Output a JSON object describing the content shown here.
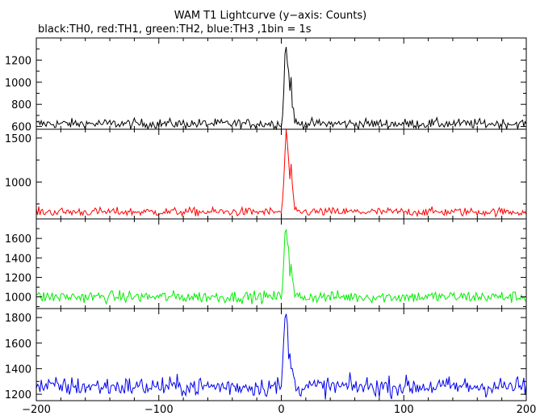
{
  "chart_data": {
    "type": "line",
    "title": "WAM T1 Lightcurve (y−axis: Counts)",
    "subtitle": "black:TH0, red:TH1, green:TH2, blue:TH3 ,1bin = 1s",
    "xlim": [
      -200,
      200
    ],
    "x_ticks": [
      -200,
      -100,
      0,
      100,
      200
    ],
    "x_tick_labels": [
      "−200",
      "−100",
      "0",
      "100",
      "200"
    ],
    "grid": false,
    "panels": [
      {
        "name": "TH0",
        "color": "#000000",
        "ylim": [
          575,
          1400
        ],
        "y_ticks": [
          600,
          800,
          1000,
          1200
        ],
        "baseline": 625,
        "noise": 22,
        "burst": [
          {
            "x": 1,
            "value": 700
          },
          {
            "x": 2,
            "value": 900
          },
          {
            "x": 3,
            "value": 1250
          },
          {
            "x": 4,
            "value": 1360
          },
          {
            "x": 5,
            "value": 1150
          },
          {
            "x": 6,
            "value": 1080
          },
          {
            "x": 7,
            "value": 930
          },
          {
            "x": 8,
            "value": 1050
          },
          {
            "x": 9,
            "value": 820
          },
          {
            "x": 10,
            "value": 720
          },
          {
            "x": 12,
            "value": 650
          }
        ]
      },
      {
        "name": "TH1",
        "color": "#ff0000",
        "ylim": [
          580,
          1600
        ],
        "y_ticks": [
          1000,
          1500
        ],
        "baseline": 660,
        "noise": 24,
        "burst": [
          {
            "x": 1,
            "value": 760
          },
          {
            "x": 2,
            "value": 1000
          },
          {
            "x": 3,
            "value": 1350
          },
          {
            "x": 4,
            "value": 1560
          },
          {
            "x": 5,
            "value": 1400
          },
          {
            "x": 6,
            "value": 1250
          },
          {
            "x": 7,
            "value": 1050
          },
          {
            "x": 8,
            "value": 1180
          },
          {
            "x": 9,
            "value": 900
          },
          {
            "x": 10,
            "value": 780
          },
          {
            "x": 12,
            "value": 700
          }
        ]
      },
      {
        "name": "TH2",
        "color": "#00ee00",
        "ylim": [
          880,
          1800
        ],
        "y_ticks": [
          1000,
          1200,
          1400,
          1600
        ],
        "baseline": 1000,
        "noise": 30,
        "burst": [
          {
            "x": 1,
            "value": 1150
          },
          {
            "x": 2,
            "value": 1400
          },
          {
            "x": 3,
            "value": 1650
          },
          {
            "x": 4,
            "value": 1750
          },
          {
            "x": 5,
            "value": 1600
          },
          {
            "x": 6,
            "value": 1450
          },
          {
            "x": 7,
            "value": 1250
          },
          {
            "x": 8,
            "value": 1350
          },
          {
            "x": 9,
            "value": 1150
          },
          {
            "x": 10,
            "value": 1080
          },
          {
            "x": 12,
            "value": 1040
          }
        ]
      },
      {
        "name": "TH3",
        "color": "#0000ee",
        "ylim": [
          1150,
          1870
        ],
        "y_ticks": [
          1200,
          1400,
          1600,
          1800
        ],
        "baseline": 1260,
        "noise": 38,
        "burst": [
          {
            "x": 1,
            "value": 1400
          },
          {
            "x": 2,
            "value": 1600
          },
          {
            "x": 3,
            "value": 1780
          },
          {
            "x": 4,
            "value": 1840
          },
          {
            "x": 5,
            "value": 1700
          },
          {
            "x": 6,
            "value": 1550
          },
          {
            "x": 7,
            "value": 1450
          },
          {
            "x": 8,
            "value": 1500
          },
          {
            "x": 9,
            "value": 1380
          },
          {
            "x": 10,
            "value": 1320
          },
          {
            "x": 12,
            "value": 1290
          }
        ]
      }
    ]
  }
}
